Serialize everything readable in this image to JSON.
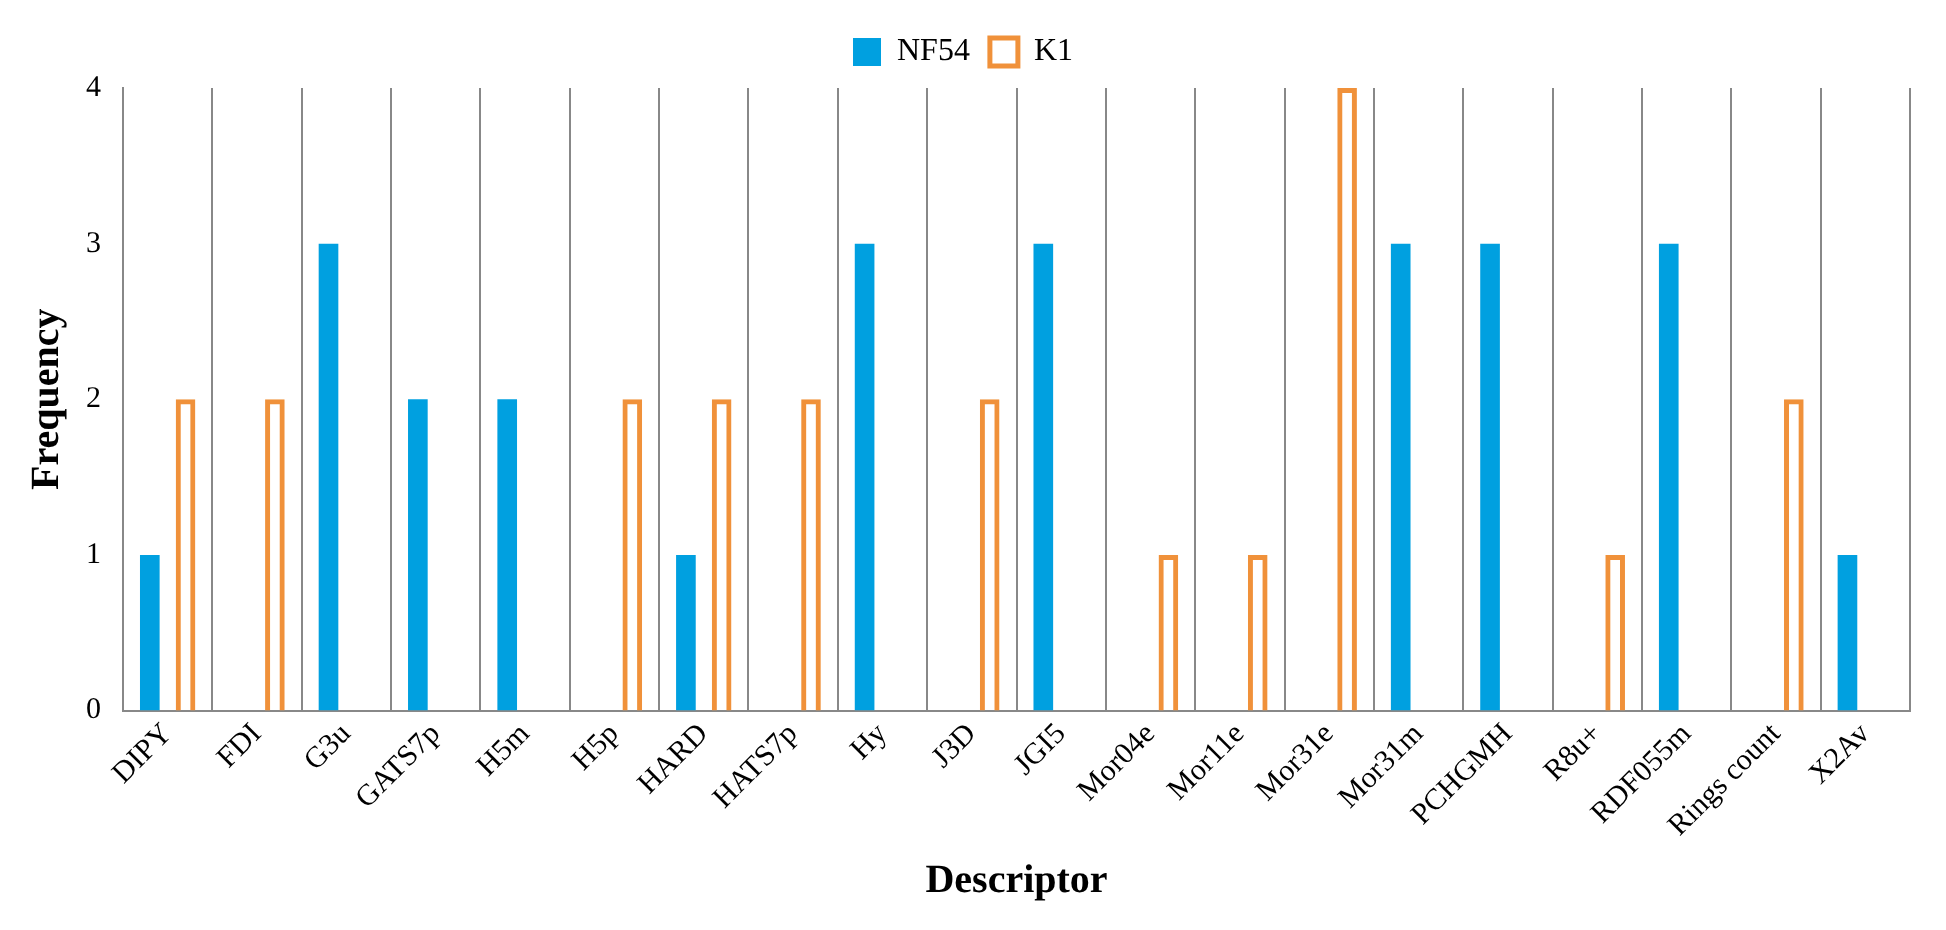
{
  "chart_data": {
    "type": "bar",
    "xlabel": "Descriptor",
    "ylabel": "Frequency",
    "categories": [
      "DIPY",
      "FDI",
      "G3u",
      "GATS7p",
      "H5m",
      "H5p",
      "HARD",
      "HATS7p",
      "Hy",
      "J3D",
      "JGI5",
      "Mor04e",
      "Mor11e",
      "Mor31e",
      "Mor31m",
      "PCHGMH",
      "R8u+",
      "RDF055m",
      "Rings count",
      "X2Av"
    ],
    "series": [
      {
        "name": "NF54",
        "color": "#00a0e0",
        "values": [
          1,
          0,
          3,
          2,
          2,
          0,
          1,
          0,
          3,
          0,
          3,
          0,
          0,
          0,
          3,
          3,
          0,
          3,
          0,
          1
        ]
      },
      {
        "name": "K1",
        "color": "#f0913a",
        "values": [
          2,
          2,
          0,
          0,
          0,
          2,
          2,
          2,
          0,
          2,
          0,
          1,
          1,
          4,
          0,
          0,
          1,
          0,
          2,
          0
        ]
      }
    ],
    "ylim": [
      0,
      4
    ],
    "yticks": [
      0,
      1,
      2,
      3,
      4
    ],
    "grid": "x",
    "legend": "top"
  }
}
